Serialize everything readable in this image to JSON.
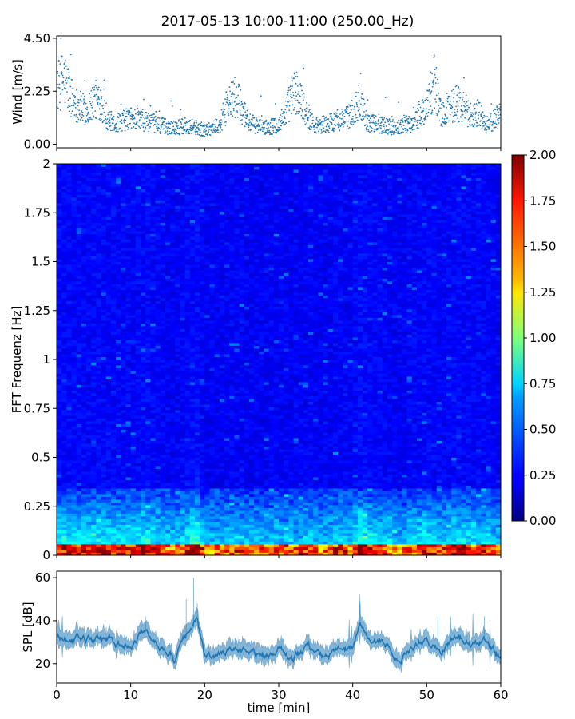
{
  "title": "2017-05-13 10:00-11:00 (250.00_Hz)",
  "chart_data": [
    {
      "type": "scatter",
      "name": "wind",
      "ylabel": "Wind [m/s]",
      "yticks": [
        "0.00",
        "2.25",
        "4.50"
      ],
      "ylim": [
        0,
        4.6
      ],
      "xlim": [
        0,
        60
      ],
      "color": "#1f77b4",
      "keypoints_x": [
        0,
        1,
        2,
        3,
        4,
        5,
        6,
        7,
        8,
        10,
        12,
        14,
        16,
        18,
        20,
        22,
        23,
        24,
        25,
        26,
        28,
        30,
        31,
        32,
        33,
        34,
        35,
        37,
        39,
        40,
        41,
        42,
        44,
        46,
        47,
        48,
        49,
        50,
        51,
        52,
        53,
        54,
        55,
        56,
        57,
        58,
        59,
        60
      ],
      "keypoints_y": [
        2.4,
        2.8,
        2.0,
        1.6,
        1.4,
        1.9,
        1.8,
        1.0,
        0.9,
        1.1,
        1.0,
        0.8,
        0.7,
        0.8,
        0.6,
        0.8,
        1.6,
        2.0,
        1.6,
        0.9,
        0.7,
        0.8,
        1.4,
        2.2,
        1.9,
        1.2,
        0.8,
        0.9,
        1.1,
        1.3,
        1.9,
        0.9,
        0.8,
        0.7,
        0.9,
        0.8,
        1.2,
        1.5,
        2.7,
        1.2,
        1.6,
        1.8,
        1.6,
        1.1,
        1.4,
        0.8,
        1.0,
        1.3
      ]
    },
    {
      "type": "heatmap",
      "name": "spectrogram",
      "ylabel": "FFT Frequenz [Hz]",
      "yticks": [
        "0",
        "0.25",
        "0.5",
        "0.75",
        "1",
        "1.25",
        "1.5",
        "1.75",
        "2"
      ],
      "ylim": [
        0,
        2
      ],
      "xlim": [
        0,
        60
      ],
      "colormap": "jet",
      "colorbar": {
        "ticks": [
          "0.00",
          "0.25",
          "0.50",
          "0.75",
          "1.00",
          "1.25",
          "1.50",
          "1.75",
          "2.00"
        ],
        "range": [
          0,
          2
        ]
      }
    },
    {
      "type": "area",
      "name": "spl",
      "ylabel": "SPL [dB]",
      "xlabel": "time [min]",
      "xticks": [
        "0",
        "10",
        "20",
        "30",
        "40",
        "50",
        "60"
      ],
      "yticks": [
        "20",
        "40",
        "60"
      ],
      "ylim": [
        11,
        63
      ],
      "xlim": [
        0,
        60
      ],
      "color": "#1f77b4",
      "keypoints_x": [
        0,
        2,
        4,
        6,
        8,
        10,
        12,
        14,
        16,
        17,
        18,
        19,
        20,
        22,
        24,
        26,
        28,
        30,
        32,
        34,
        36,
        38,
        40,
        41,
        42,
        44,
        46,
        48,
        50,
        52,
        54,
        56,
        58,
        59,
        60
      ],
      "keypoints_y": [
        33,
        32,
        31,
        33,
        30,
        28,
        36,
        27,
        22,
        30,
        34,
        40,
        24,
        23,
        28,
        24,
        23,
        26,
        23,
        27,
        22,
        28,
        26,
        39,
        33,
        30,
        22,
        28,
        33,
        26,
        34,
        28,
        31,
        26,
        23
      ]
    }
  ]
}
